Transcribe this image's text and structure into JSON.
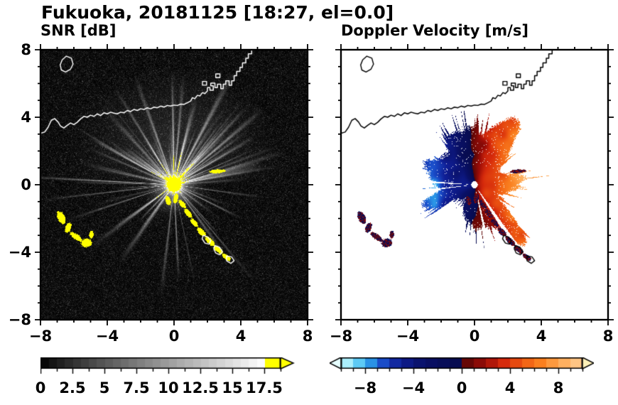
{
  "title": "Fukuoka, 20181125 [18:27, el=0.0]",
  "left_panel": {
    "subtitle": "SNR [dB]",
    "x_tick_labels": [
      "−8",
      "−4",
      "0",
      "4",
      "8"
    ],
    "y_tick_labels": [
      "8",
      "4",
      "0",
      "−4",
      "−8"
    ],
    "colorbar_labels": [
      "0",
      "2.5",
      "5",
      "7.5",
      "10",
      "12.5",
      "15",
      "17.5"
    ]
  },
  "right_panel": {
    "subtitle": "Doppler Velocity [m/s]",
    "x_tick_labels": [
      "−8",
      "−4",
      "0",
      "4",
      "8"
    ],
    "colorbar_labels": [
      "−8",
      "−4",
      "0",
      "4",
      "8"
    ]
  },
  "chart_data": {
    "type": "heatmap",
    "subtype": "radar-ppi-pair",
    "station": "Fukuoka",
    "date": "20181125",
    "time": "18:27",
    "elevation": "el=0.0",
    "xlim": [
      -8,
      8
    ],
    "ylim": [
      -8,
      8
    ],
    "x_ticks": [
      -8,
      -4,
      0,
      4,
      8
    ],
    "y_ticks": [
      -8,
      -4,
      0,
      4,
      8
    ],
    "minor_tick_interval": 1,
    "radar_center": [
      0,
      0
    ],
    "panels": [
      {
        "name": "SNR",
        "units": "dB",
        "cmap": "grayscale",
        "range": [
          0,
          17.5
        ],
        "bar_range": [
          0,
          18.75
        ],
        "bar_step": 0.625,
        "tick_labels": [
          0,
          2.5,
          5,
          7.5,
          10,
          12.5,
          15,
          17.5
        ],
        "over_color": "#ffff00",
        "background": "#000000",
        "coast_color": "#ffffff"
      },
      {
        "name": "Doppler Velocity",
        "units": "m/s",
        "range": [
          -10,
          10
        ],
        "bar_step": 1,
        "tick_labels": [
          -8,
          -4,
          0,
          4,
          8
        ],
        "colormap": [
          [
            -10,
            "#d8fcff"
          ],
          [
            -9,
            "#7fe3fa"
          ],
          [
            -7.8,
            "#2fa8ee"
          ],
          [
            -6.6,
            "#1b50cc"
          ],
          [
            -5.2,
            "#101f96"
          ],
          [
            -3.2,
            "#0a1168"
          ],
          [
            -0.05,
            "#070c4e"
          ],
          [
            0.05,
            "#560606"
          ],
          [
            2,
            "#9e0d08"
          ],
          [
            3.5,
            "#d62b0c"
          ],
          [
            5,
            "#ef5a12"
          ],
          [
            6.5,
            "#fa7f1f"
          ],
          [
            8,
            "#ffa64e"
          ],
          [
            10,
            "#ffd096"
          ]
        ],
        "under_color": "#e6feff",
        "over_color": "#fff1b8",
        "background": "#ffffff",
        "coast_color": "#000000"
      }
    ],
    "snr": {
      "seed": 11,
      "ray_count": 85,
      "noise_floor": 0.75,
      "long_rays": [
        {
          "a": 177,
          "amp": 15,
          "w": 0.5,
          "L": 8.8
        },
        {
          "a": 186.5,
          "amp": 10,
          "w": 0.45,
          "L": 8.2
        },
        {
          "a": 150,
          "amp": 9,
          "w": 0.5,
          "L": 7
        },
        {
          "a": 310,
          "amp": 8,
          "w": 0.6,
          "L": 7.5
        },
        {
          "a": 282,
          "amp": 7,
          "w": 0.5,
          "L": 6
        },
        {
          "a": 40,
          "amp": 14,
          "w": 1.2,
          "L": 7
        },
        {
          "a": 62,
          "amp": 14,
          "w": 1.4,
          "L": 7.5
        },
        {
          "a": 85,
          "amp": 12,
          "w": 1.0,
          "L": 6.5
        },
        {
          "a": 110,
          "amp": 12,
          "w": 1.1,
          "L": 6.8
        },
        {
          "a": 10,
          "amp": 10,
          "w": 0.8,
          "L": 6.2
        },
        {
          "a": 352,
          "amp": 9,
          "w": 0.7,
          "L": 5.5
        }
      ]
    },
    "velocity": {
      "seed": 5,
      "max_speed": 8.3,
      "gaps": [
        {
          "a": 176.5,
          "w": 1.2
        },
        {
          "a": 186.5,
          "w": 1.0
        },
        {
          "a": 283,
          "w": 1.5
        },
        {
          "a": 304,
          "w": 2.2
        }
      ],
      "lobes": [
        {
          "a": 312,
          "h": 1.8,
          "w": 10
        },
        {
          "a": 5,
          "h": 1.2,
          "w": 16
        },
        {
          "a": 55,
          "h": 0.9,
          "w": 12
        },
        {
          "a": 120,
          "h": 0.9,
          "w": 10
        },
        {
          "a": 200,
          "h": 1.1,
          "w": 9
        }
      ]
    },
    "coastline": [
      [
        -8,
        3.05
      ],
      [
        -7.75,
        3.12
      ],
      [
        -7.55,
        3.4
      ],
      [
        -7.35,
        3.82
      ],
      [
        -7.15,
        3.92
      ],
      [
        -6.95,
        3.72
      ],
      [
        -6.8,
        3.48
      ],
      [
        -6.6,
        3.36
      ],
      [
        -6.4,
        3.52
      ],
      [
        -6.2,
        3.66
      ],
      [
        -6,
        3.56
      ],
      [
        -5.8,
        3.7
      ],
      [
        -5.6,
        3.9
      ],
      [
        -5.4,
        4.05
      ],
      [
        -5.2,
        4
      ],
      [
        -5,
        4.12
      ],
      [
        -4.8,
        4.05
      ],
      [
        -4.6,
        4.2
      ],
      [
        -4.4,
        4.1
      ],
      [
        -4.2,
        4.26
      ],
      [
        -4,
        4.2
      ],
      [
        -3.8,
        4.3
      ],
      [
        -3.6,
        4.24
      ],
      [
        -3.4,
        4.2
      ],
      [
        -3.2,
        4.3
      ],
      [
        -3,
        4.26
      ],
      [
        -2.8,
        4.4
      ],
      [
        -2.6,
        4.34
      ],
      [
        -2.4,
        4.46
      ],
      [
        -2.2,
        4.4
      ],
      [
        -2,
        4.5
      ],
      [
        -1.8,
        4.46
      ],
      [
        -1.6,
        4.56
      ],
      [
        -1.4,
        4.5
      ],
      [
        -1.2,
        4.6
      ],
      [
        -1,
        4.56
      ],
      [
        -0.8,
        4.66
      ],
      [
        -0.6,
        4.6
      ],
      [
        -0.4,
        4.7
      ],
      [
        -0.2,
        4.66
      ],
      [
        0,
        4.72
      ],
      [
        0.2,
        4.7
      ],
      [
        0.4,
        4.78
      ],
      [
        0.6,
        4.76
      ],
      [
        0.8,
        4.86
      ],
      [
        1,
        4.96
      ],
      [
        1.1,
        5.16
      ],
      [
        1.25,
        5.1
      ],
      [
        1.4,
        5.3
      ],
      [
        1.55,
        5.26
      ],
      [
        1.7,
        5.46
      ],
      [
        1.85,
        5.4
      ],
      [
        2,
        5.56
      ],
      [
        2,
        5.76
      ],
      [
        2.15,
        5.76
      ],
      [
        2.15,
        5.6
      ],
      [
        2.35,
        5.6
      ],
      [
        2.35,
        5.86
      ],
      [
        2.2,
        5.86
      ],
      [
        2.2,
        6.02
      ],
      [
        2.45,
        6.02
      ],
      [
        2.45,
        5.76
      ],
      [
        2.6,
        5.76
      ],
      [
        2.6,
        5.96
      ],
      [
        2.8,
        5.96
      ],
      [
        2.8,
        5.7
      ],
      [
        2.95,
        5.7
      ],
      [
        2.95,
        5.96
      ],
      [
        3.1,
        5.96
      ],
      [
        3.1,
        6.16
      ],
      [
        3.3,
        6.16
      ],
      [
        3.3,
        5.9
      ],
      [
        3.45,
        5.9
      ],
      [
        3.45,
        6.16
      ],
      [
        3.6,
        6.16
      ],
      [
        3.6,
        6.46
      ],
      [
        3.75,
        6.46
      ],
      [
        3.75,
        6.72
      ],
      [
        3.95,
        6.72
      ],
      [
        3.95,
        6.96
      ],
      [
        4.1,
        6.96
      ],
      [
        4.1,
        7.22
      ],
      [
        4.3,
        7.22
      ],
      [
        4.3,
        7.5
      ],
      [
        4.45,
        7.5
      ],
      [
        4.45,
        7.76
      ],
      [
        4.65,
        7.76
      ],
      [
        4.65,
        8.05
      ]
    ],
    "islands": [
      [
        [
          -6.75,
          6.8
        ],
        [
          -6.5,
          6.68
        ],
        [
          -6.2,
          6.85
        ],
        [
          -6.05,
          7.15
        ],
        [
          -6.15,
          7.5
        ],
        [
          -6.45,
          7.62
        ],
        [
          -6.7,
          7.4
        ],
        [
          -6.82,
          7.1
        ]
      ],
      [
        [
          1.7,
          5.9
        ],
        [
          1.95,
          5.9
        ],
        [
          1.95,
          6.12
        ],
        [
          1.7,
          6.12
        ]
      ],
      [
        [
          2.5,
          6.35
        ],
        [
          2.75,
          6.35
        ],
        [
          2.75,
          6.57
        ],
        [
          2.5,
          6.57
        ]
      ],
      [
        [
          1.75,
          -3.0
        ],
        [
          2.0,
          -3.08
        ],
        [
          2.2,
          -3.3
        ],
        [
          2.1,
          -3.52
        ],
        [
          1.85,
          -3.46
        ],
        [
          1.68,
          -3.2
        ]
      ],
      [
        [
          2.45,
          -3.6
        ],
        [
          2.72,
          -3.7
        ],
        [
          2.9,
          -3.95
        ],
        [
          2.75,
          -4.15
        ],
        [
          2.5,
          -4.05
        ],
        [
          2.38,
          -3.8
        ]
      ],
      [
        [
          3.15,
          -4.22
        ],
        [
          3.45,
          -4.28
        ],
        [
          3.6,
          -4.5
        ],
        [
          3.4,
          -4.66
        ],
        [
          3.14,
          -4.5
        ]
      ]
    ],
    "clutter_patches": [
      {
        "x": -6.75,
        "y": -1.95,
        "rx": 0.22,
        "ry": 0.4,
        "rot": 25
      },
      {
        "x": -6.35,
        "y": -2.55,
        "rx": 0.18,
        "ry": 0.32,
        "rot": -20
      },
      {
        "x": -5.85,
        "y": -3.1,
        "rx": 0.45,
        "ry": 0.16,
        "rot": -35
      },
      {
        "x": -5.25,
        "y": -3.45,
        "rx": 0.32,
        "ry": 0.26,
        "rot": 10
      },
      {
        "x": -4.95,
        "y": -2.95,
        "rx": 0.14,
        "ry": 0.22,
        "rot": 0
      },
      {
        "x": 0.5,
        "y": -1.15,
        "rx": 0.3,
        "ry": 0.14,
        "rot": -50
      },
      {
        "x": 0.85,
        "y": -1.7,
        "rx": 0.32,
        "ry": 0.15,
        "rot": -50
      },
      {
        "x": 1.2,
        "y": -2.25,
        "rx": 0.3,
        "ry": 0.14,
        "rot": -50
      },
      {
        "x": 1.65,
        "y": -2.8,
        "rx": 0.34,
        "ry": 0.16,
        "rot": -45
      },
      {
        "x": 2.15,
        "y": -3.35,
        "rx": 0.36,
        "ry": 0.16,
        "rot": -45
      },
      {
        "x": 2.65,
        "y": -3.85,
        "rx": 0.34,
        "ry": 0.15,
        "rot": -40
      },
      {
        "x": 3.15,
        "y": -4.3,
        "rx": 0.3,
        "ry": 0.14,
        "rot": -35
      },
      {
        "x": 2.6,
        "y": 0.8,
        "rx": 0.5,
        "ry": 0.11,
        "rot": 4
      },
      {
        "x": -0.35,
        "y": -0.95,
        "rx": 0.16,
        "ry": 0.28,
        "rot": 20
      },
      {
        "x": 0.1,
        "y": -0.8,
        "rx": 0.14,
        "ry": 0.3,
        "rot": -10
      }
    ]
  }
}
